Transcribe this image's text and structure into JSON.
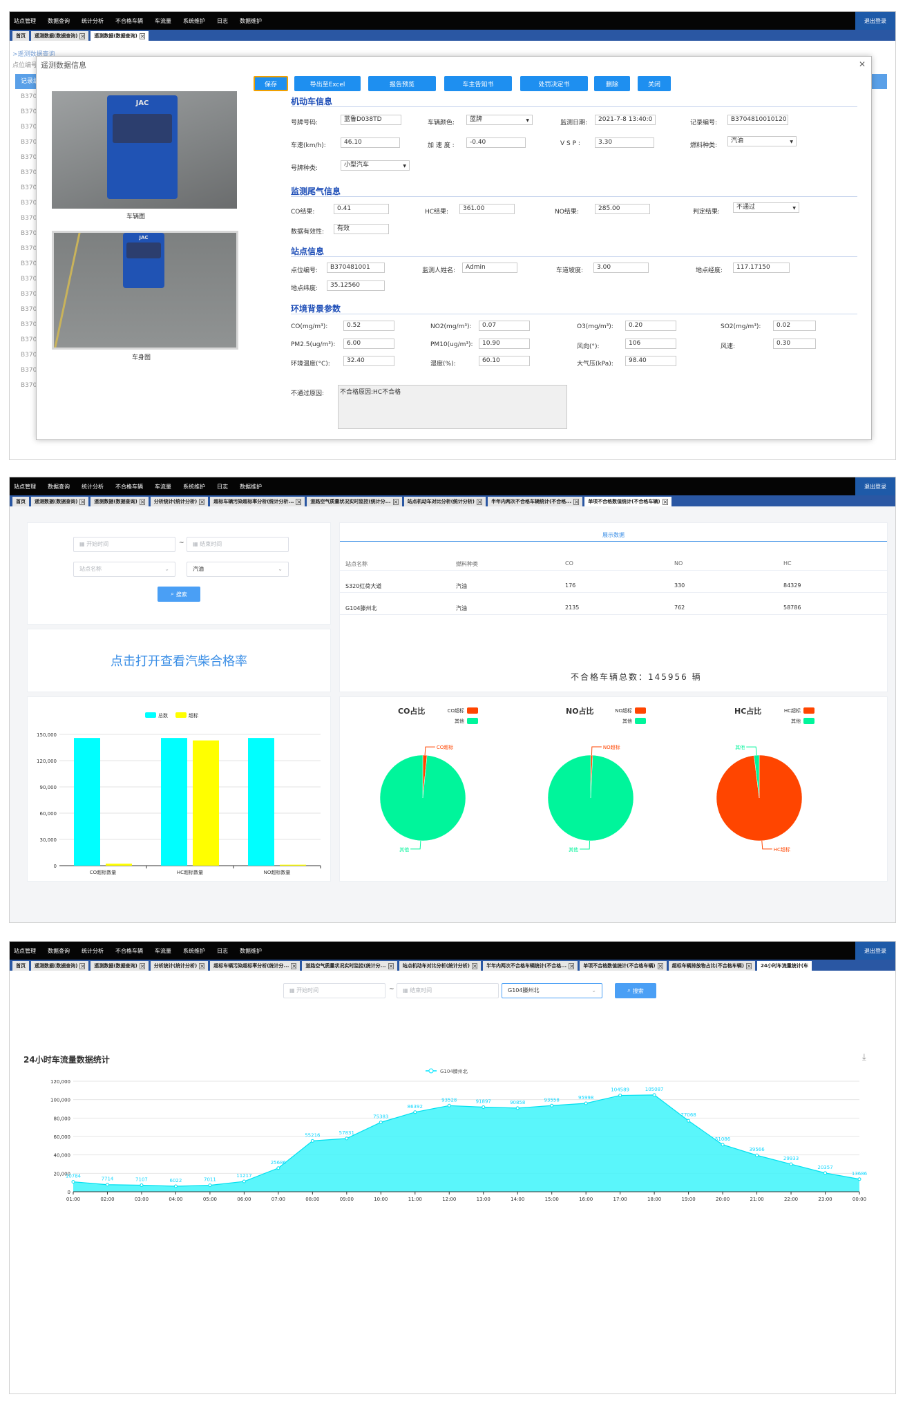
{
  "nav": {
    "menu": [
      "站点管理",
      "数据查询",
      "统计分析",
      "不合格车辆",
      "车流量",
      "系统维护",
      "日志",
      "数据维护"
    ],
    "logout": "退出登录"
  },
  "panel1": {
    "tabs": [
      "首页",
      "遥测数据(数据查询)",
      "遥测数据(数据查询)"
    ],
    "bg": {
      "breadcrumb": ">遥测数据查询",
      "filter": "点位编号:",
      "header": "记录编号",
      "row_id": "B370"
    },
    "modal": {
      "title": "遥测数据信息",
      "buttons": [
        "保存",
        "导出至Excel",
        "报告预览",
        "车主告知书",
        "处罚决定书",
        "删除",
        "关闭"
      ],
      "photo1_caption": "车辆图",
      "photo2_caption": "车身图",
      "truck_brand": "JAC",
      "sections": [
        "机动车信息",
        "监测尾气信息",
        "站点信息",
        "环境背景参数"
      ],
      "vehicle": {
        "plate_label": "号牌号码:",
        "plate": "蓝鲁D038TD",
        "color_label": "车辆颜色:",
        "color": "蓝牌",
        "date_label": "监测日期:",
        "date": "2021-7-8 13:40:0",
        "record_label": "记录编号:",
        "record": "B3704810010120",
        "speed_label": "车速(km/h):",
        "speed": "46.10",
        "accel_label": "加 速 度 :",
        "accel": "-0.40",
        "vsp_label": "V S P :",
        "vsp": "3.30",
        "fuel_label": "燃料种类:",
        "fuel": "汽油",
        "plate_type_label": "号牌种类:",
        "plate_type": "小型汽车"
      },
      "exhaust": {
        "co_label": "CO结果:",
        "co": "0.41",
        "hc_label": "HC结果:",
        "hc": "361.00",
        "no_label": "NO结果:",
        "no": "285.00",
        "judge_label": "判定结果:",
        "judge": "不通过",
        "valid_label": "数据有效性:",
        "valid": "有效"
      },
      "site": {
        "site_id_label": "点位编号:",
        "site_id": "B370481001",
        "inspector_label": "监测人姓名:",
        "inspector": "Admin",
        "slope_label": "车道坡度:",
        "slope": "3.00",
        "lon_label": "地点经度:",
        "lon": "117.17150",
        "lat_label": "地点纬度:",
        "lat": "35.12560"
      },
      "env": {
        "co_label": "CO(mg/m³):",
        "co": "0.52",
        "no2_label": "NO2(mg/m³):",
        "no2": "0.07",
        "o3_label": "O3(mg/m³):",
        "o3": "0.20",
        "so2_label": "SO2(mg/m³):",
        "so2": "0.02",
        "pm25_label": "PM2.5(ug/m³):",
        "pm25": "6.00",
        "pm10_label": "PM10(ug/m³):",
        "pm10": "10.90",
        "wind_dir_label": "风向(°):",
        "wind_dir": "106",
        "wind_speed_label": "风速:",
        "wind_speed": "0.30",
        "temp_label": "环境温度(°C):",
        "temp": "32.40",
        "humidity_label": "湿度(%):",
        "humidity": "60.10",
        "pressure_label": "大气压(kPa):",
        "pressure": "98.40"
      },
      "fail_reason_label": "不通过原因:",
      "fail_reason": "不合格原因:HC不合格"
    }
  },
  "panel2": {
    "tabs": [
      "首页",
      "遥测数据(数据查询)",
      "遥测数据(数据查询)",
      "分析统计(统计分析)",
      "超标车辆污染超标率分析(统计分析...",
      "道路空气质量状况实时监控(统计分...",
      "站点机动车对比分析(统计分析)",
      "半年内两次不合格车辆统计(不合格...",
      "单项不合格数值统计(不合格车辆)"
    ],
    "filters": {
      "start_placeholder": "开始时间",
      "range_sep": "~",
      "end_placeholder": "结束时间",
      "site_placeholder": "站点名称",
      "fuel_value": "汽油",
      "search_btn": "搜索"
    },
    "link_text": "点击打开查看汽柴合格率",
    "table": {
      "tab_label": "展示数据",
      "headers": [
        "站点名称",
        "燃料种类",
        "CO",
        "NO",
        "HC"
      ],
      "rows": [
        [
          "S320红荷大道",
          "汽油",
          "176",
          "330",
          "84329"
        ],
        [
          "G104滕州北",
          "汽油",
          "2135",
          "762",
          "58786"
        ]
      ]
    },
    "total_text": "不合格车辆总数：145956 辆",
    "colors": {
      "total": "#00ffff",
      "exceed": "#ffff00",
      "pie_exceed": "#ff4500",
      "pie_other": "#00f59b"
    },
    "pies": [
      {
        "title": "CO占比",
        "exceed_label": "CO超标",
        "other_label": "其他"
      },
      {
        "title": "NO占比",
        "exceed_label": "NO超标",
        "other_label": "其他"
      },
      {
        "title": "HC占比",
        "exceed_label": "HC超标",
        "other_label": "其他"
      }
    ]
  },
  "panel3": {
    "tabs": [
      "首页",
      "遥测数据(数据查询)",
      "遥测数据(数据查询)",
      "分析统计(统计分析)",
      "超标车辆污染超标率分析(统计分...",
      "道路空气质量状况实时监控(统计分...",
      "站点机动车对比分析(统计分析)",
      "半年内两次不合格车辆统计(不合格...",
      "单项不合格数值统计(不合格车辆)",
      "超标车辆排放物占比(不合格车辆)",
      "24小时车流量统计(车"
    ],
    "filters": {
      "start_placeholder": "开始时间",
      "range_sep": "~",
      "end_placeholder": "结束时间",
      "site_value": "G104滕州北",
      "search_btn": "搜索"
    },
    "chart_title": "24小时车流量数据统计",
    "download_icon": "download-icon"
  },
  "chart_data": [
    {
      "type": "bar",
      "categories": [
        "CO超标数量",
        "HC超标数量",
        "NO超标数量"
      ],
      "series": [
        {
          "name": "总数",
          "values": [
            145956,
            145956,
            145956
          ]
        },
        {
          "name": "超标",
          "values": [
            2311,
            143115,
            1092
          ]
        }
      ],
      "ylim": [
        0,
        150000
      ],
      "yticks": [
        "0",
        "30,000",
        "60,000",
        "90,000",
        "120,000",
        "150,000"
      ],
      "legend": "top"
    },
    {
      "type": "pie",
      "title": "CO占比",
      "labels": [
        "CO超标",
        "其他"
      ],
      "values": [
        2311,
        143645
      ]
    },
    {
      "type": "pie",
      "title": "NO占比",
      "labels": [
        "NO超标",
        "其他"
      ],
      "values": [
        1092,
        144864
      ]
    },
    {
      "type": "pie",
      "title": "HC占比",
      "labels": [
        "HC超标",
        "其他"
      ],
      "values": [
        143115,
        2841
      ]
    },
    {
      "type": "area",
      "title": "24小时车流量数据统计",
      "series": [
        {
          "name": "G104滕州北",
          "values": [
            10784,
            7714,
            7107,
            6022,
            7011,
            11217,
            25686,
            55216,
            57831,
            75383,
            86392,
            93528,
            91897,
            90858,
            93558,
            95998,
            104589,
            105087,
            77068,
            51086,
            39566,
            29933,
            20357,
            13686
          ]
        }
      ],
      "x": [
        "01:00",
        "02:00",
        "03:00",
        "04:00",
        "05:00",
        "06:00",
        "07:00",
        "08:00",
        "09:00",
        "10:00",
        "11:00",
        "12:00",
        "13:00",
        "14:00",
        "15:00",
        "16:00",
        "17:00",
        "18:00",
        "19:00",
        "20:00",
        "21:00",
        "22:00",
        "23:00",
        "00:00"
      ],
      "ylim": [
        0,
        120000
      ],
      "yticks": [
        "0",
        "20,000",
        "40,000",
        "60,000",
        "80,000",
        "100,000",
        "120,000"
      ],
      "legend": "top"
    }
  ]
}
